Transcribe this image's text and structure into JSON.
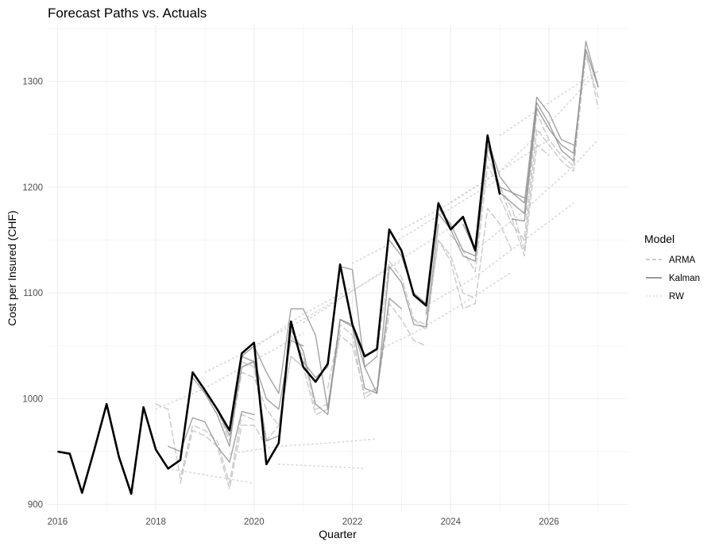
{
  "chart_data": {
    "type": "line",
    "title": "Forecast Paths vs. Actuals",
    "xlabel": "Quarter",
    "ylabel": "Cost per Insured (CHF)",
    "xlim": [
      2015.8,
      2027.6
    ],
    "ylim": [
      893,
      1353
    ],
    "x_ticks": [
      2016,
      2018,
      2020,
      2022,
      2024,
      2026
    ],
    "y_ticks": [
      900,
      1000,
      1100,
      1200,
      1300
    ],
    "grid": true,
    "legend": {
      "title": "Model",
      "position": "right",
      "entries": [
        {
          "label": "ARMA",
          "dash": "dashed",
          "color": "#c4c4c4"
        },
        {
          "label": "Kalman",
          "dash": "solid",
          "color": "#8c8c8c"
        },
        {
          "label": "RW",
          "dash": "dotted",
          "color": "#d4d4d4"
        }
      ]
    },
    "actual": {
      "color": "#000000",
      "x": [
        2016.0,
        2016.25,
        2016.5,
        2016.75,
        2017.0,
        2017.25,
        2017.5,
        2017.75,
        2018.0,
        2018.25,
        2018.5,
        2018.75,
        2019.0,
        2019.25,
        2019.5,
        2019.75,
        2020.0,
        2020.25,
        2020.5,
        2020.75,
        2021.0,
        2021.25,
        2021.5,
        2021.75,
        2022.0,
        2022.25,
        2022.5,
        2022.75,
        2023.0,
        2023.25,
        2023.5,
        2023.75,
        2024.0,
        2024.25,
        2024.5,
        2024.75,
        2025.0
      ],
      "y": [
        950,
        948,
        911,
        952,
        995,
        945,
        910,
        992,
        952,
        934,
        942,
        1025,
        1008,
        990,
        970,
        1043,
        1053,
        938,
        958,
        1073,
        1030,
        1016,
        1033,
        1127,
        1070,
        1040,
        1047,
        1160,
        1140,
        1098,
        1088,
        1185,
        1160,
        1172,
        1140,
        1249,
        1193
      ]
    },
    "forecast_paths": [
      {
        "model": "RW",
        "x": [
          2018.0,
          2019.0,
          2020.0,
          2021.0
        ],
        "y": [
          990,
          1010,
          1036,
          1062
        ]
      },
      {
        "model": "RW",
        "x": [
          2019.0,
          2020.0,
          2021.0,
          2022.0
        ],
        "y": [
          1025,
          1048,
          1080,
          1105
        ]
      },
      {
        "model": "RW",
        "x": [
          2020.0,
          2021.0,
          2022.0,
          2023.0
        ],
        "y": [
          1050,
          1075,
          1102,
          1130
        ]
      },
      {
        "model": "RW",
        "x": [
          2021.0,
          2022.0,
          2023.0,
          2024.0
        ],
        "y": [
          1072,
          1102,
          1132,
          1162
        ]
      },
      {
        "model": "RW",
        "x": [
          2022.0,
          2023.0,
          2024.0,
          2025.0
        ],
        "y": [
          1128,
          1152,
          1180,
          1208
        ]
      },
      {
        "model": "RW",
        "x": [
          2023.0,
          2024.0,
          2025.0,
          2026.0
        ],
        "y": [
          1160,
          1185,
          1215,
          1245
        ]
      },
      {
        "model": "RW",
        "x": [
          2024.0,
          2025.0,
          2026.0,
          2027.0
        ],
        "y": [
          1186,
          1215,
          1260,
          1310
        ]
      },
      {
        "model": "RW",
        "x": [
          2025.0,
          2026.0,
          2027.0
        ],
        "y": [
          1249,
          1280,
          1310
        ]
      },
      {
        "model": "RW",
        "x": [
          2018.25,
          2019.0,
          2020.0
        ],
        "y": [
          934,
          928,
          920
        ]
      },
      {
        "model": "RW",
        "x": [
          2019.5,
          2020.5,
          2021.5,
          2022.5
        ],
        "y": [
          948,
          955,
          958,
          962
        ]
      },
      {
        "model": "RW",
        "x": [
          2020.5,
          2021.5,
          2022.25
        ],
        "y": [
          938,
          936,
          934
        ]
      },
      {
        "model": "RW",
        "x": [
          2022.25,
          2023.25,
          2024.25,
          2025.25
        ],
        "y": [
          1040,
          1062,
          1090,
          1120
        ]
      },
      {
        "model": "RW",
        "x": [
          2023.5,
          2024.5,
          2025.5,
          2026.5
        ],
        "y": [
          1088,
          1115,
          1150,
          1185
        ]
      },
      {
        "model": "RW",
        "x": [
          2024.5,
          2025.5,
          2026.5,
          2027.0
        ],
        "y": [
          1140,
          1178,
          1220,
          1245
        ]
      },
      {
        "model": "ARMA",
        "x": [
          2018.0,
          2018.25,
          2018.5,
          2018.75,
          2019.0,
          2019.25,
          2019.5,
          2019.75,
          2020.0
        ],
        "y": [
          995,
          990,
          925,
          975,
          970,
          960,
          920,
          985,
          980
        ]
      },
      {
        "model": "ARMA",
        "x": [
          2018.5,
          2018.75,
          2019.0,
          2019.25,
          2019.5,
          2019.75,
          2020.0,
          2020.25
        ],
        "y": [
          920,
          970,
          965,
          955,
          915,
          975,
          975,
          955
        ]
      },
      {
        "model": "ARMA",
        "x": [
          2019.0,
          2019.25,
          2019.5,
          2019.75,
          2020.0,
          2020.25,
          2020.5,
          2020.75,
          2021.0
        ],
        "y": [
          1005,
          990,
          960,
          1025,
          1020,
          990,
          975,
          1040,
          1030
        ]
      },
      {
        "model": "ARMA",
        "x": [
          2019.75,
          2020.0,
          2020.25,
          2020.5,
          2020.75,
          2021.0,
          2021.25,
          2021.5,
          2021.75
        ],
        "y": [
          1035,
          1030,
          960,
          975,
          1040,
          1030,
          985,
          990,
          1065
        ]
      },
      {
        "model": "ARMA",
        "x": [
          2020.75,
          2021.0,
          2021.25,
          2021.5,
          2021.75,
          2022.0,
          2022.25,
          2022.5,
          2022.75
        ],
        "y": [
          1060,
          1040,
          990,
          995,
          1060,
          1050,
          1005,
          1010,
          1080
        ]
      },
      {
        "model": "ARMA",
        "x": [
          2021.5,
          2021.75,
          2022.0,
          2022.25,
          2022.5,
          2022.75,
          2023.0,
          2023.25,
          2023.5
        ],
        "y": [
          1010,
          1070,
          1060,
          1000,
          1010,
          1090,
          1075,
          1055,
          1050
        ]
      },
      {
        "model": "ARMA",
        "x": [
          2022.5,
          2022.75,
          2023.0,
          2023.25,
          2023.5,
          2023.75,
          2024.0,
          2024.25,
          2024.5
        ],
        "y": [
          1040,
          1130,
          1115,
          1075,
          1070,
          1150,
          1135,
          1100,
          1095
        ]
      },
      {
        "model": "ARMA",
        "x": [
          2023.25,
          2023.5,
          2023.75,
          2024.0,
          2024.25,
          2024.5,
          2024.75,
          2025.0,
          2025.25
        ],
        "y": [
          1075,
          1065,
          1150,
          1130,
          1085,
          1090,
          1180,
          1165,
          1140
        ]
      },
      {
        "model": "ARMA",
        "x": [
          2024.0,
          2024.25,
          2024.5,
          2024.75,
          2025.0,
          2025.25,
          2025.5,
          2025.75,
          2026.0
        ],
        "y": [
          1155,
          1140,
          1120,
          1220,
          1200,
          1170,
          1135,
          1240,
          1230
        ]
      },
      {
        "model": "ARMA",
        "x": [
          2024.75,
          2025.0,
          2025.25,
          2025.5,
          2025.75,
          2026.0,
          2026.25,
          2026.5,
          2026.75,
          2027.0
        ],
        "y": [
          1230,
          1200,
          1180,
          1140,
          1255,
          1240,
          1225,
          1215,
          1330,
          1275
        ]
      },
      {
        "model": "ARMA",
        "x": [
          2025.0,
          2025.25,
          2025.5,
          2025.75,
          2026.0,
          2026.25,
          2026.5,
          2026.75,
          2027.0
        ],
        "y": [
          1190,
          1165,
          1150,
          1270,
          1245,
          1230,
          1220,
          1325,
          1285
        ]
      },
      {
        "model": "Kalman",
        "x": [
          2018.25,
          2018.5,
          2018.75,
          2019.0,
          2019.25,
          2019.5,
          2019.75,
          2020.0
        ],
        "y": [
          955,
          950,
          982,
          978,
          955,
          940,
          988,
          985
        ]
      },
      {
        "model": "Kalman",
        "x": [
          2018.75,
          2019.0,
          2019.25,
          2019.5,
          2019.75,
          2020.0,
          2020.25,
          2020.5
        ],
        "y": [
          1020,
          1005,
          985,
          955,
          1040,
          1035,
          960,
          965
        ]
      },
      {
        "model": "Kalman",
        "x": [
          2019.25,
          2019.5,
          2019.75,
          2020.0,
          2020.25,
          2020.5,
          2020.75,
          2021.0
        ],
        "y": [
          990,
          965,
          1030,
          1035,
          1000,
          990,
          1055,
          1050
        ]
      },
      {
        "model": "Kalman",
        "x": [
          2019.75,
          2020.0,
          2020.25,
          2020.5,
          2020.75,
          2021.0,
          2021.25,
          2021.5,
          2021.75
        ],
        "y": [
          1040,
          1050,
          1025,
          1005,
          1085,
          1085,
          1060,
          990,
          1075
        ]
      },
      {
        "model": "Kalman",
        "x": [
          2020.5,
          2020.75,
          2021.0,
          2021.25,
          2021.5,
          2021.75,
          2022.0,
          2022.25,
          2022.5
        ],
        "y": [
          960,
          1065,
          1045,
          995,
          985,
          1075,
          1070,
          1030,
          1040
        ]
      },
      {
        "model": "Kalman",
        "x": [
          2021.0,
          2021.25,
          2021.5,
          2021.75,
          2022.0,
          2022.25,
          2022.5,
          2022.75,
          2023.0
        ],
        "y": [
          1035,
          1020,
          1030,
          1125,
          1122,
          1030,
          1005,
          1095,
          1085
        ]
      },
      {
        "model": "Kalman",
        "x": [
          2021.75,
          2022.0,
          2022.25,
          2022.5,
          2022.75,
          2023.0,
          2023.25,
          2023.5,
          2023.75
        ],
        "y": [
          1075,
          1068,
          1010,
          1005,
          1125,
          1110,
          1070,
          1068,
          1165
        ]
      },
      {
        "model": "Kalman",
        "x": [
          2022.75,
          2023.0,
          2023.25,
          2023.5,
          2023.75,
          2024.0,
          2024.25,
          2024.5,
          2024.75
        ],
        "y": [
          1150,
          1135,
          1100,
          1090,
          1175,
          1160,
          1135,
          1130,
          1235
        ]
      },
      {
        "model": "Kalman",
        "x": [
          2023.5,
          2023.75,
          2024.0,
          2024.25,
          2024.5,
          2024.75,
          2025.0,
          2025.25,
          2025.5
        ],
        "y": [
          1080,
          1180,
          1165,
          1140,
          1135,
          1240,
          1200,
          1195,
          1190
        ]
      },
      {
        "model": "Kalman",
        "x": [
          2024.25,
          2024.5,
          2024.75,
          2025.0,
          2025.25,
          2025.5,
          2025.75,
          2026.0,
          2026.25,
          2026.5
        ],
        "y": [
          1165,
          1140,
          1245,
          1210,
          1195,
          1185,
          1285,
          1270,
          1245,
          1240
        ]
      },
      {
        "model": "Kalman",
        "x": [
          2025.0,
          2025.25,
          2025.5,
          2025.75,
          2026.0,
          2026.25,
          2026.5,
          2026.75,
          2027.0
        ],
        "y": [
          1195,
          1185,
          1175,
          1280,
          1260,
          1235,
          1225,
          1338,
          1295
        ]
      },
      {
        "model": "Kalman",
        "x": [
          2025.25,
          2025.5,
          2025.75,
          2026.0,
          2026.25,
          2026.5,
          2026.75,
          2027.0
        ],
        "y": [
          1170,
          1168,
          1275,
          1255,
          1240,
          1232,
          1330,
          1295
        ]
      }
    ]
  }
}
